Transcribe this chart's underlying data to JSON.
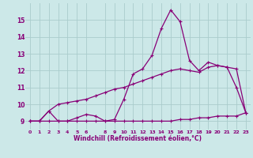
{
  "x": [
    0,
    1,
    2,
    3,
    4,
    5,
    6,
    7,
    8,
    9,
    10,
    11,
    12,
    13,
    14,
    15,
    16,
    17,
    18,
    19,
    20,
    21,
    22,
    23
  ],
  "line1": [
    9,
    9,
    9.6,
    9,
    9,
    9.2,
    9.4,
    9.3,
    9,
    9.1,
    10.3,
    11.8,
    12.1,
    12.9,
    14.5,
    15.6,
    14.9,
    12.6,
    12.0,
    12.5,
    12.3,
    12.2,
    11.0,
    9.5
  ],
  "line2": [
    9,
    9,
    9,
    9,
    9,
    9,
    9,
    9,
    9,
    9,
    9,
    9,
    9,
    9,
    9,
    9,
    9.1,
    9.1,
    9.2,
    9.2,
    9.3,
    9.3,
    9.3,
    9.5
  ],
  "line3": [
    9,
    9,
    9.6,
    10.0,
    10.1,
    10.2,
    10.3,
    10.5,
    10.7,
    10.9,
    11.0,
    11.2,
    11.4,
    11.6,
    11.8,
    12.0,
    12.1,
    12.0,
    11.9,
    12.2,
    12.3,
    12.2,
    12.1,
    9.5
  ],
  "xlabel": "Windchill (Refroidissement éolien,°C)",
  "xlim": [
    -0.5,
    23.5
  ],
  "ylim": [
    8.5,
    16.0
  ],
  "yticks": [
    9,
    10,
    11,
    12,
    13,
    14,
    15
  ],
  "xticks": [
    0,
    1,
    2,
    3,
    4,
    5,
    6,
    8,
    9,
    10,
    11,
    12,
    13,
    14,
    15,
    16,
    17,
    18,
    19,
    20,
    21,
    22,
    23
  ],
  "bg_color": "#cce8e8",
  "line_color": "#880077",
  "grid_color": "#aacccc",
  "markersize": 3,
  "linewidth": 0.9
}
